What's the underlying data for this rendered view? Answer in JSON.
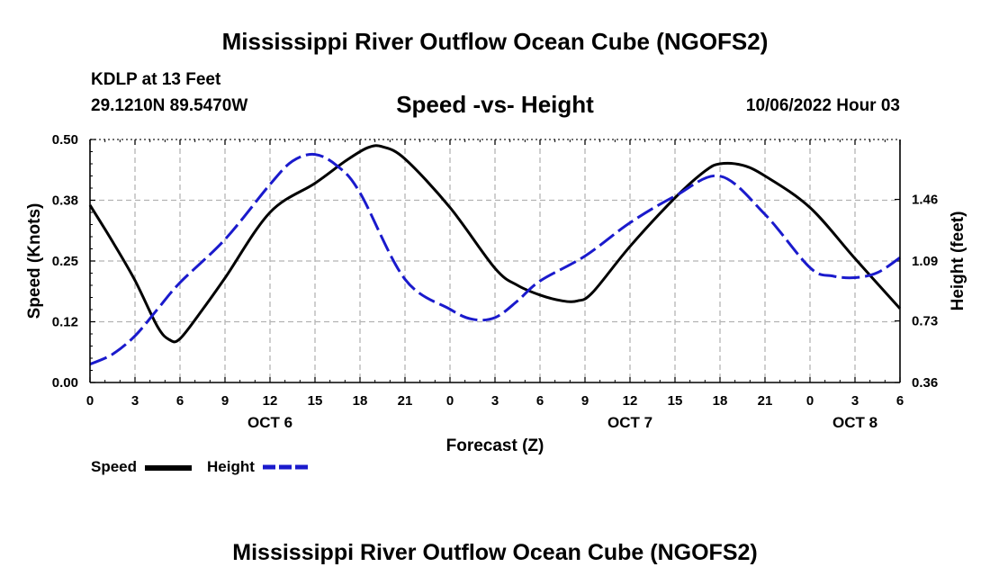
{
  "page": {
    "title_top": "Mississippi River Outflow Ocean Cube (NGOFS2)",
    "title_bottom": "Mississippi River Outflow Ocean Cube (NGOFS2)",
    "station": "KDLP at 13 Feet",
    "coords": "29.1210N  89.5470W",
    "subtitle": "Speed -vs- Height",
    "datetime": "10/06/2022 Hour 03"
  },
  "legend": {
    "speed_label": "Speed",
    "height_label": "Height"
  },
  "colors": {
    "speed": "#000000",
    "height": "#1a1acc",
    "grid": "#b3b3b3"
  },
  "chart_data": {
    "type": "line",
    "title": "Speed -vs- Height",
    "xlabel": "Forecast (Z)",
    "ylabel": "Speed (Knots)",
    "y2label": "Height (feet)",
    "x_unit": "hours since 10/06/2022 00Z",
    "xlim": [
      0,
      54
    ],
    "ylim": [
      0.0,
      0.5
    ],
    "y2lim": [
      0.36,
      1.82
    ],
    "x_ticks": [
      0,
      3,
      6,
      9,
      12,
      15,
      18,
      21,
      24,
      27,
      30,
      33,
      36,
      39,
      42,
      45,
      48,
      51,
      54
    ],
    "x_tick_labels": [
      "0",
      "3",
      "6",
      "9",
      "12",
      "15",
      "18",
      "21",
      "0",
      "3",
      "6",
      "9",
      "12",
      "15",
      "18",
      "21",
      "0",
      "3",
      "6"
    ],
    "date_labels": [
      {
        "x": 12,
        "label": "OCT 6"
      },
      {
        "x": 36,
        "label": "OCT 7"
      },
      {
        "x": 51,
        "label": "OCT 8"
      }
    ],
    "y_ticks": [
      0.0,
      0.125,
      0.25,
      0.375,
      0.5
    ],
    "y_tick_labels": [
      "0.00",
      "0.12",
      "0.25",
      "0.38",
      "0.50"
    ],
    "y2_ticks": [
      0.36,
      0.73,
      1.09,
      1.46
    ],
    "y2_tick_labels": [
      "0.36",
      "0.73",
      "1.09",
      "1.46"
    ],
    "grid": true,
    "legend_position": "bottom-left",
    "series": [
      {
        "name": "Speed",
        "axis": "left",
        "style": "solid",
        "x": [
          0,
          1.5,
          3,
          4.5,
          5.3,
          6,
          7.5,
          9,
          12,
          15,
          17,
          18.5,
          19.5,
          21,
          24,
          27,
          28.5,
          30,
          31.5,
          32.5,
          33.5,
          36,
          39,
          41,
          42,
          43.5,
          45,
          48,
          51,
          54
        ],
        "y": [
          0.365,
          0.29,
          0.21,
          0.115,
          0.088,
          0.09,
          0.15,
          0.215,
          0.35,
          0.41,
          0.455,
          0.483,
          0.485,
          0.46,
          0.36,
          0.235,
          0.2,
          0.18,
          0.168,
          0.168,
          0.185,
          0.28,
          0.38,
          0.435,
          0.45,
          0.447,
          0.425,
          0.36,
          0.255,
          0.152
        ]
      },
      {
        "name": "Height",
        "axis": "right",
        "style": "dashed",
        "x": [
          0,
          1.5,
          3,
          4.5,
          6,
          9,
          12,
          13.5,
          15,
          16.5,
          18,
          21,
          24,
          25.5,
          27,
          28.5,
          30,
          33,
          36,
          39,
          42,
          45,
          48,
          49.5,
          51,
          52.5,
          54
        ],
        "y": [
          0.47,
          0.53,
          0.64,
          0.8,
          0.96,
          1.22,
          1.55,
          1.69,
          1.73,
          1.66,
          1.5,
          0.98,
          0.8,
          0.74,
          0.75,
          0.85,
          0.97,
          1.12,
          1.32,
          1.48,
          1.6,
          1.37,
          1.05,
          1.0,
          0.99,
          1.02,
          1.11
        ]
      }
    ]
  }
}
